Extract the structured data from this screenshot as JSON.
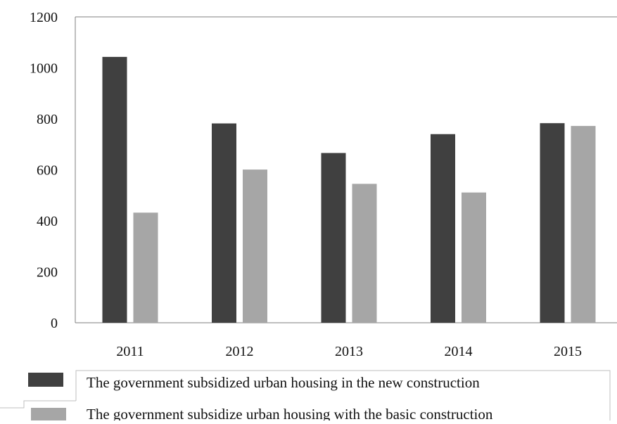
{
  "chart_data": {
    "type": "bar",
    "title": "",
    "xlabel": "",
    "ylabel": "",
    "categories": [
      "2011",
      "2012",
      "2013",
      "2014",
      "2015"
    ],
    "series": [
      {
        "name": "The government subsidized urban housing in the new construction",
        "values": [
          1043,
          782,
          666,
          740,
          783
        ],
        "color": "#404040"
      },
      {
        "name": "The government subsidize urban housing with the basic construction",
        "values": [
          432,
          601,
          545,
          511,
          772
        ],
        "color": "#a6a6a6"
      }
    ],
    "ylim": [
      0,
      1200
    ],
    "yticks": [
      "0",
      "200",
      "400",
      "600",
      "800",
      "1000",
      "1200"
    ],
    "grid": false,
    "legend_position": "bottom"
  }
}
